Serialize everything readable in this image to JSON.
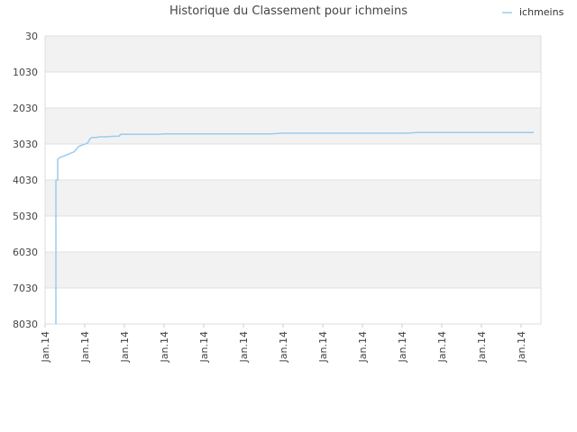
{
  "chart_data": {
    "type": "line",
    "title": "Historique du Classement pour ichmeins",
    "xlabel": "",
    "ylabel": "",
    "y_inverted": true,
    "ylim": [
      8030,
      30
    ],
    "y_ticks": [
      30,
      1030,
      2030,
      3030,
      4030,
      5030,
      6030,
      7030,
      8030
    ],
    "x_tick_labels": [
      "Jan.14",
      "Jan.14",
      "Jan.14",
      "Jan.14",
      "Jan.14",
      "Jan.14",
      "Jan.14",
      "Jan.14",
      "Jan.14",
      "Jan.14",
      "Jan.14",
      "Jan.14",
      "Jan.14"
    ],
    "grid": true,
    "legend": {
      "position": "top-right"
    },
    "series": [
      {
        "name": "ichmeins",
        "color": "#99ccf0",
        "points": [
          [
            0.0,
            8030
          ],
          [
            0.0,
            4030
          ],
          [
            0.02,
            4030
          ],
          [
            0.02,
            3450
          ],
          [
            0.05,
            3400
          ],
          [
            0.1,
            3350
          ],
          [
            0.15,
            3300
          ],
          [
            0.2,
            3250
          ],
          [
            0.22,
            3200
          ],
          [
            0.25,
            3100
          ],
          [
            0.3,
            3050
          ],
          [
            0.35,
            3010
          ],
          [
            0.38,
            2880
          ],
          [
            0.4,
            2850
          ],
          [
            0.45,
            2850
          ],
          [
            0.48,
            2830
          ],
          [
            0.55,
            2830
          ],
          [
            0.6,
            2820
          ],
          [
            0.7,
            2810
          ],
          [
            0.72,
            2760
          ],
          [
            0.8,
            2760
          ],
          [
            0.9,
            2760
          ],
          [
            1.0,
            2760
          ],
          [
            1.1,
            2760
          ],
          [
            1.15,
            2760
          ],
          [
            1.2,
            2750
          ],
          [
            1.3,
            2750
          ],
          [
            1.5,
            2750
          ],
          [
            1.8,
            2750
          ],
          [
            2.0,
            2750
          ],
          [
            2.2,
            2750
          ],
          [
            2.4,
            2750
          ],
          [
            2.5,
            2730
          ],
          [
            2.8,
            2730
          ],
          [
            3.0,
            2730
          ],
          [
            3.2,
            2730
          ],
          [
            3.5,
            2730
          ],
          [
            3.7,
            2730
          ],
          [
            3.9,
            2730
          ],
          [
            4.0,
            2710
          ],
          [
            4.5,
            2710
          ],
          [
            4.9,
            2710
          ],
          [
            5.0,
            2710
          ],
          [
            5.3,
            2710
          ]
        ]
      }
    ]
  }
}
